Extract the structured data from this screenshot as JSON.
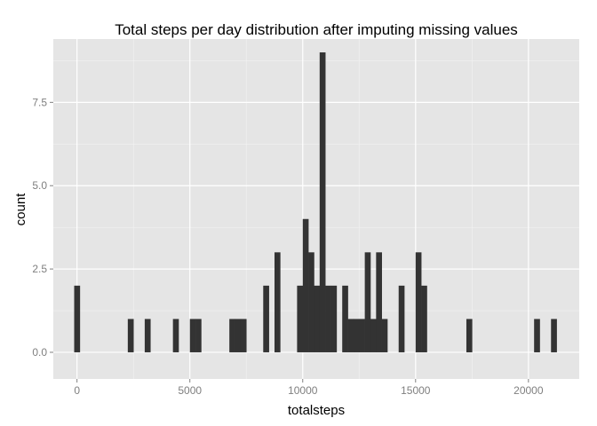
{
  "chart_data": {
    "type": "bar",
    "title": "Total steps per day distribution after imputing missing values",
    "xlabel": "totalsteps",
    "ylabel": "count",
    "xlim": [
      -1050,
      22250
    ],
    "ylim": [
      -0.8,
      9.4
    ],
    "x_ticks": [
      0,
      5000,
      10000,
      15000,
      20000
    ],
    "x_tick_labels": [
      "0",
      "5000",
      "10000",
      "15000",
      "20000"
    ],
    "y_ticks": [
      0,
      2.5,
      5,
      7.5
    ],
    "y_tick_labels": [
      "0.0",
      "2.5",
      "5.0",
      "7.5"
    ],
    "grid": true,
    "bin_width": 250,
    "colors": {
      "panel": "#e5e5e5",
      "grid_major": "#ffffff",
      "grid_minor": "#f2f2f2",
      "bar": "#333333",
      "tick_label": "#7f7f7f",
      "tick_mark": "#7f7f7f"
    },
    "bins": [
      {
        "x": 0,
        "count": 2
      },
      {
        "x": 2375,
        "count": 1
      },
      {
        "x": 3125,
        "count": 1
      },
      {
        "x": 4375,
        "count": 1
      },
      {
        "x": 5125,
        "count": 1
      },
      {
        "x": 5375,
        "count": 1
      },
      {
        "x": 6875,
        "count": 1
      },
      {
        "x": 7125,
        "count": 1
      },
      {
        "x": 7375,
        "count": 1
      },
      {
        "x": 8375,
        "count": 2
      },
      {
        "x": 8875,
        "count": 3
      },
      {
        "x": 9875,
        "count": 2
      },
      {
        "x": 10125,
        "count": 4
      },
      {
        "x": 10375,
        "count": 3
      },
      {
        "x": 10625,
        "count": 2
      },
      {
        "x": 10875,
        "count": 9
      },
      {
        "x": 11125,
        "count": 2
      },
      {
        "x": 11375,
        "count": 2
      },
      {
        "x": 11875,
        "count": 2
      },
      {
        "x": 12125,
        "count": 1
      },
      {
        "x": 12375,
        "count": 1
      },
      {
        "x": 12625,
        "count": 1
      },
      {
        "x": 12875,
        "count": 3
      },
      {
        "x": 13125,
        "count": 1
      },
      {
        "x": 13375,
        "count": 3
      },
      {
        "x": 13625,
        "count": 1
      },
      {
        "x": 14375,
        "count": 2
      },
      {
        "x": 15125,
        "count": 3
      },
      {
        "x": 15375,
        "count": 2
      },
      {
        "x": 17375,
        "count": 1
      },
      {
        "x": 20375,
        "count": 1
      },
      {
        "x": 21125,
        "count": 1
      }
    ]
  }
}
